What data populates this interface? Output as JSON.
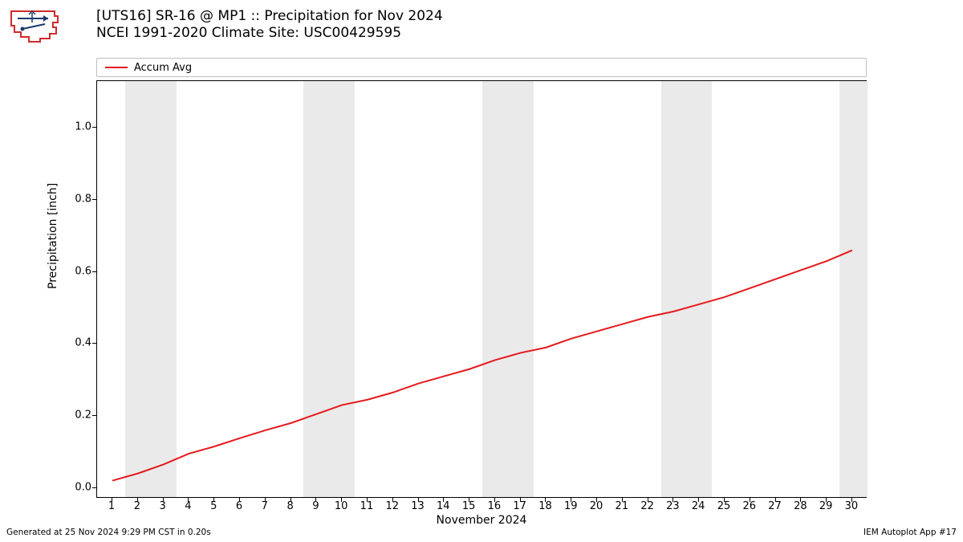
{
  "title_line1": "[UTS16] SR-16 @ MP1  :: Precipitation for Nov 2024",
  "title_line2": "NCEI 1991-2020 Climate Site: USC00429595",
  "ylabel": "Precipitation [inch]",
  "xlabel": "November 2024",
  "footer_left": "Generated at 25 Nov 2024 9:29 PM CST in 0.20s",
  "footer_right": "IEM Autoplot App #17",
  "legend": {
    "label": "Accum Avg",
    "color": "#e41a1c"
  },
  "logo": {
    "outline_color": "#d02a2a",
    "glyph_color": "#1a3a6a"
  },
  "chart": {
    "type": "line",
    "background_color": "#ffffff",
    "shade_color": "#eaeaea",
    "border_color": "#000000",
    "line_color": "#e41a1c",
    "line_width": 2,
    "xlim": [
      0.4,
      30.6
    ],
    "ylim": [
      -0.03,
      1.13
    ],
    "xticks": [
      1,
      2,
      3,
      4,
      5,
      6,
      7,
      8,
      9,
      10,
      11,
      12,
      13,
      14,
      15,
      16,
      17,
      18,
      19,
      20,
      21,
      22,
      23,
      24,
      25,
      26,
      27,
      28,
      29,
      30
    ],
    "yticks": [
      0.0,
      0.2,
      0.4,
      0.6,
      0.8,
      1.0
    ],
    "ytick_labels": [
      "0.0",
      "0.2",
      "0.4",
      "0.6",
      "0.8",
      "1.0"
    ],
    "shade_bands": [
      [
        1.5,
        3.5
      ],
      [
        8.5,
        10.5
      ],
      [
        15.5,
        17.5
      ],
      [
        22.5,
        24.5
      ],
      [
        29.5,
        30.6
      ]
    ],
    "series": {
      "x": [
        1,
        2,
        3,
        4,
        5,
        6,
        7,
        8,
        9,
        10,
        11,
        12,
        13,
        14,
        15,
        16,
        17,
        18,
        19,
        20,
        21,
        22,
        23,
        24,
        25,
        26,
        27,
        28,
        29,
        30
      ],
      "y": [
        0.02,
        0.04,
        0.065,
        0.095,
        0.115,
        0.138,
        0.16,
        0.18,
        0.205,
        0.23,
        0.245,
        0.265,
        0.29,
        0.31,
        0.33,
        0.355,
        0.375,
        0.39,
        0.415,
        0.435,
        0.455,
        0.475,
        0.49,
        0.51,
        0.53,
        0.555,
        0.58,
        0.605,
        0.63,
        0.66
      ]
    }
  }
}
